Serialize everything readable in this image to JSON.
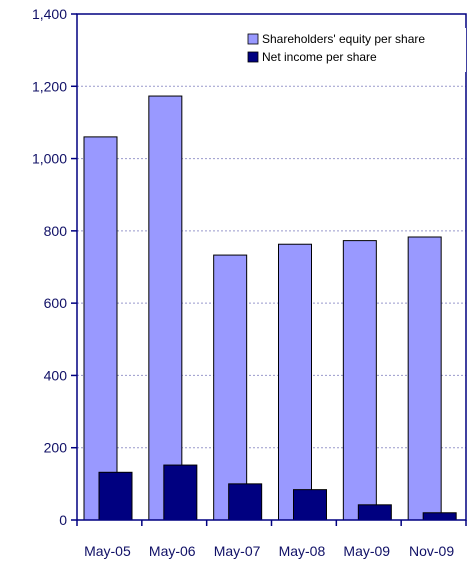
{
  "chart_data": {
    "type": "bar",
    "title": "",
    "xlabel": "",
    "ylabel": "",
    "categories": [
      "May-05",
      "May-06",
      "May-07",
      "May-08",
      "May-09",
      "Nov-09"
    ],
    "series": [
      {
        "name": "Shareholders' equity per share",
        "values": [
          1060,
          1173,
          733,
          763,
          773,
          783
        ],
        "color": "#9999ff"
      },
      {
        "name": "Net income per share",
        "values": [
          132,
          152,
          100,
          84,
          42,
          20
        ],
        "color": "#000080"
      }
    ],
    "ylim": [
      0,
      1400
    ],
    "yticks": [
      0,
      200,
      400,
      600,
      800,
      1000,
      1200,
      1400
    ],
    "ytick_labels": [
      "0",
      "200",
      "400",
      "600",
      "800",
      "1,000",
      "1,200",
      "1,400"
    ],
    "grid": true,
    "legend_position": "top-right",
    "axis_color": "#000080",
    "grid_color": "#9999cc"
  }
}
